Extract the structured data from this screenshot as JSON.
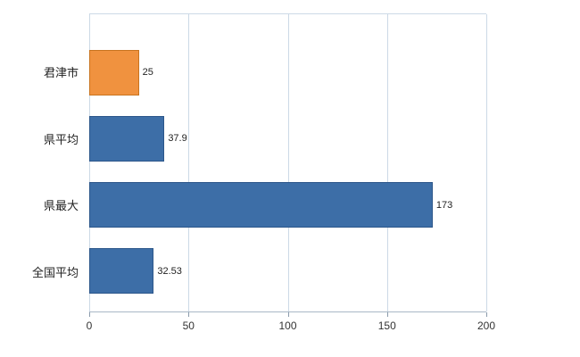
{
  "chart_data": {
    "type": "bar",
    "orientation": "horizontal",
    "title": "",
    "xlabel": "",
    "ylabel": "",
    "categories": [
      "君津市",
      "県平均",
      "県最大",
      "全国平均"
    ],
    "values": [
      25,
      37.9,
      173,
      32.53
    ],
    "value_labels": [
      "25",
      "37.9",
      "173",
      "32.53"
    ],
    "bar_colors": [
      "#f0923f",
      "#3d6ea7",
      "#3d6ea7",
      "#3d6ea7"
    ],
    "bar_border_colors": [
      "#c8741f",
      "#2c568a",
      "#2c568a",
      "#2c568a"
    ],
    "xlim": [
      0,
      200
    ],
    "xticks": [
      0,
      50,
      100,
      150,
      200
    ],
    "xtick_labels": [
      "0",
      "50",
      "100",
      "150",
      "200"
    ],
    "grid": "vertical",
    "legend": "none",
    "gridline_color": "#ccd9e6",
    "axis_color": "#8a9aab",
    "background_color": "#ffffff"
  }
}
